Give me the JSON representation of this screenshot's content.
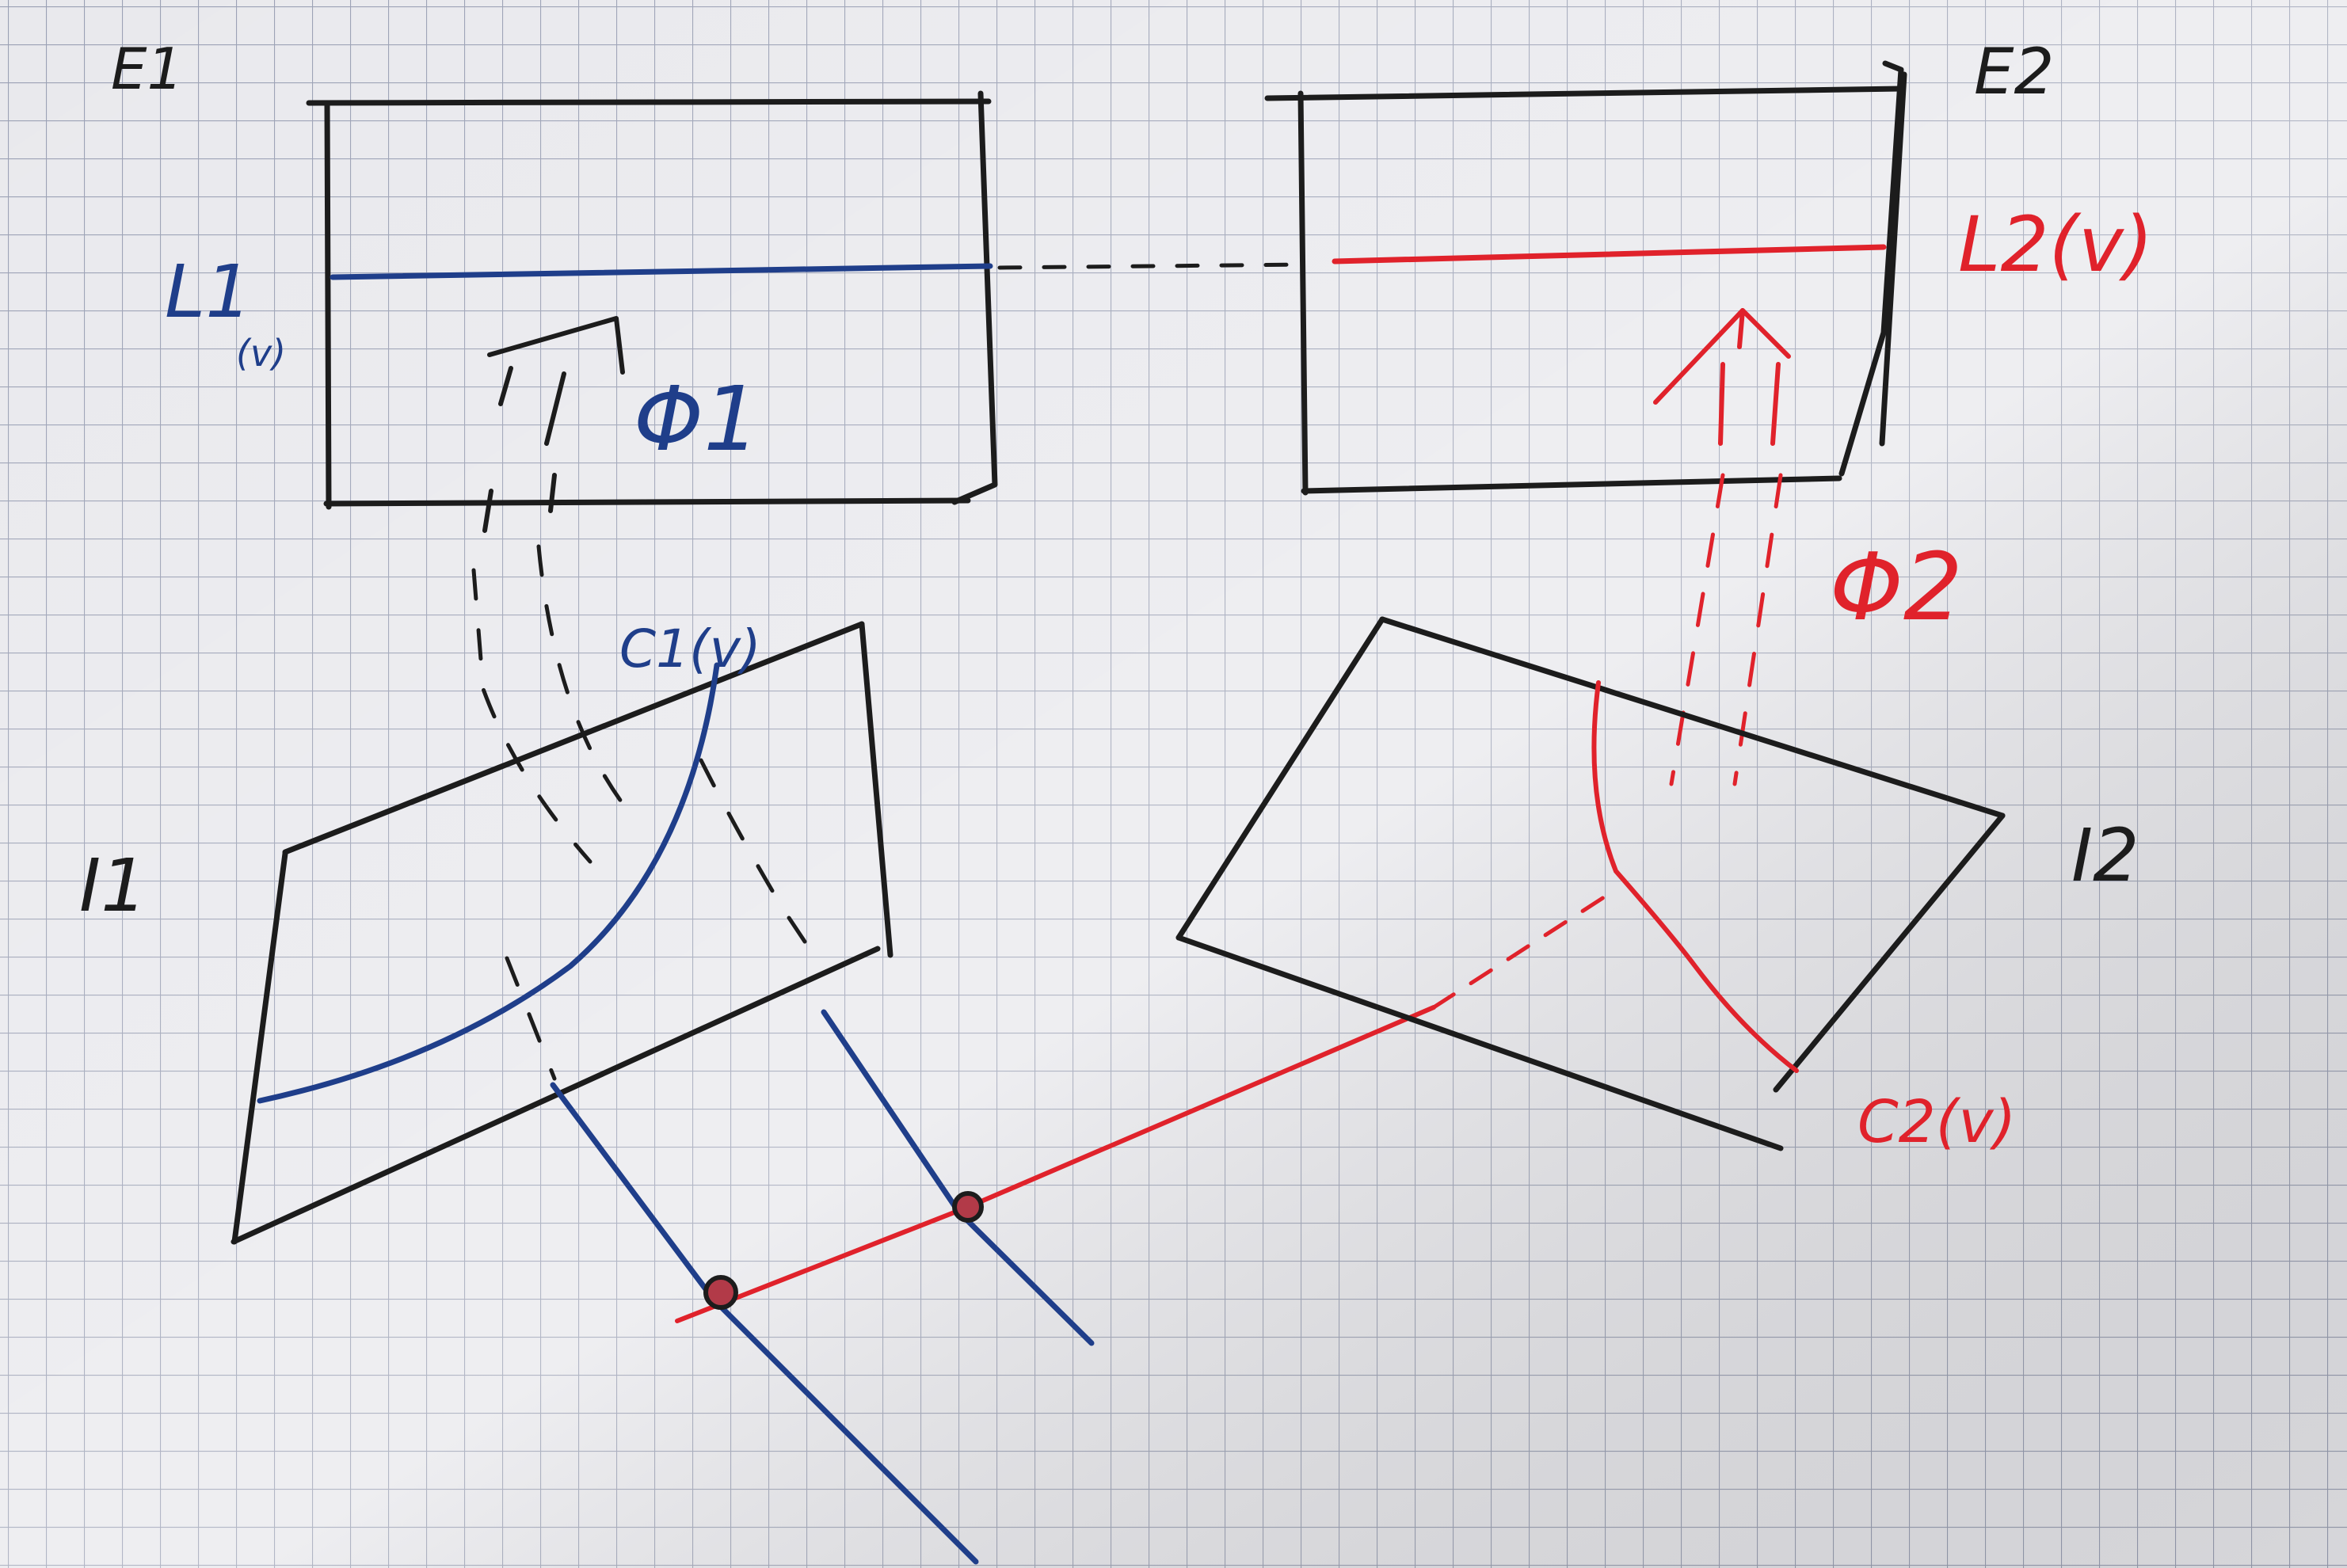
{
  "labels": {
    "e1": "E1",
    "e2": "E2",
    "l1_main": "L1",
    "l1_sub": "(v)",
    "l2": "L2(v)",
    "phi1": "Φ1",
    "phi2": "Φ2",
    "i1": "I1",
    "i2": "I2",
    "c1": "C1(v)",
    "c2": "C2(v)"
  },
  "colors": {
    "paper": "#e9e9ed",
    "grid": "#9aa0b4",
    "black_ink": "#1c1c1c",
    "blue_ink": "#1f3e8a",
    "red_ink": "#e0222b"
  }
}
